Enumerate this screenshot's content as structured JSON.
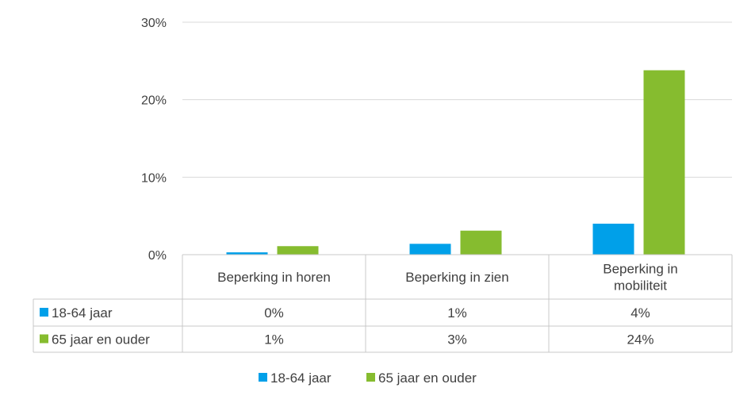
{
  "chart_data": {
    "type": "bar",
    "categories": [
      [
        "Beperking in horen"
      ],
      [
        "Beperking in zien"
      ],
      [
        "Beperking in",
        "mobiliteit"
      ]
    ],
    "series": [
      {
        "name": "18-64 jaar",
        "color": "#00a0e9",
        "values": [
          0.3,
          1.4,
          4.0
        ],
        "labels": [
          "0%",
          "1%",
          "4%"
        ]
      },
      {
        "name": "65 jaar en ouder",
        "color": "#86bc2f",
        "values": [
          1.1,
          3.1,
          23.8
        ],
        "labels": [
          "1%",
          "3%",
          "24%"
        ]
      }
    ],
    "yticks": [
      "0%",
      "10%",
      "20%",
      "30%"
    ],
    "ylim": [
      0,
      30
    ],
    "grid": true,
    "legend": "bottom",
    "data_table": true
  }
}
